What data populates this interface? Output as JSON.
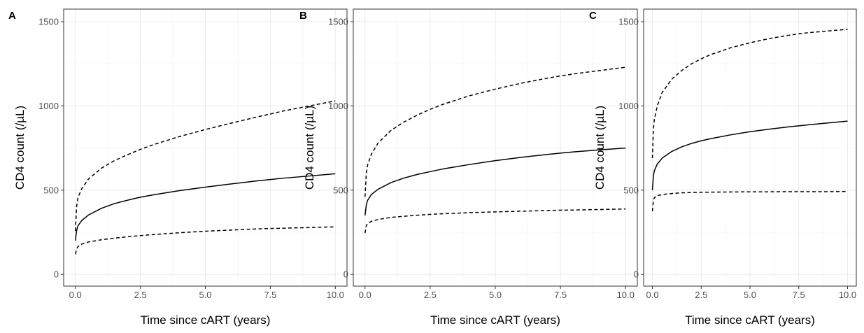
{
  "chart_data": [
    {
      "type": "line",
      "panel_label": "A",
      "xlabel": "Time since cART (years)",
      "ylabel": "CD4 count (/µL)",
      "xlim": [
        0,
        10
      ],
      "ylim": [
        0,
        1500
      ],
      "xticks": [
        "0.0",
        "2.5",
        "5.0",
        "7.5",
        "10.0"
      ],
      "yticks": [
        "0",
        "500",
        "1000",
        "1500"
      ],
      "grid": true,
      "series": [
        {
          "style": "solid",
          "x": [
            0,
            0.05,
            0.1,
            0.25,
            0.5,
            1,
            1.5,
            2,
            2.5,
            3,
            4,
            5,
            6,
            7,
            7.5,
            8,
            9,
            10
          ],
          "y": [
            200,
            262,
            288,
            320,
            352,
            392,
            420,
            440,
            458,
            472,
            497,
            518,
            537,
            555,
            563,
            571,
            584,
            597
          ]
        },
        {
          "style": "dashed",
          "x": [
            0,
            0.05,
            0.1,
            0.25,
            0.5,
            1,
            1.5,
            2,
            2.5,
            3,
            4,
            5,
            6,
            7,
            7.5,
            8,
            9,
            10
          ],
          "y": [
            258,
            405,
            455,
            510,
            565,
            630,
            675,
            710,
            742,
            770,
            818,
            860,
            898,
            935,
            952,
            970,
            1000,
            1030
          ]
        },
        {
          "style": "dashed",
          "x": [
            0,
            0.05,
            0.1,
            0.25,
            0.5,
            1,
            1.5,
            2,
            2.5,
            3,
            4,
            5,
            6,
            7,
            7.5,
            8,
            9,
            10
          ],
          "y": [
            120,
            150,
            165,
            180,
            192,
            205,
            215,
            223,
            230,
            236,
            247,
            256,
            263,
            270,
            272,
            274,
            278,
            282
          ]
        }
      ]
    },
    {
      "type": "line",
      "panel_label": "B",
      "xlabel": "Time since cART (years)",
      "ylabel": "CD4 count (/µL)",
      "xlim": [
        0,
        10
      ],
      "ylim": [
        0,
        1500
      ],
      "xticks": [
        "0.0",
        "2.5",
        "5.0",
        "7.5",
        "10.0"
      ],
      "yticks": [
        "0",
        "500",
        "1000",
        "1500"
      ],
      "grid": true,
      "series": [
        {
          "style": "solid",
          "x": [
            0,
            0.05,
            0.1,
            0.25,
            0.5,
            1,
            1.5,
            2,
            2.5,
            3,
            4,
            5,
            6,
            7,
            7.5,
            8,
            9,
            10
          ],
          "y": [
            350,
            412,
            440,
            475,
            505,
            545,
            572,
            593,
            610,
            626,
            652,
            675,
            695,
            712,
            720,
            727,
            739,
            750
          ]
        },
        {
          "style": "dashed",
          "x": [
            0,
            0.05,
            0.1,
            0.25,
            0.5,
            1,
            1.5,
            2,
            2.5,
            3,
            4,
            5,
            6,
            7,
            7.5,
            8,
            9,
            10
          ],
          "y": [
            460,
            600,
            650,
            715,
            780,
            855,
            905,
            945,
            980,
            1010,
            1060,
            1100,
            1135,
            1165,
            1178,
            1190,
            1210,
            1230
          ]
        },
        {
          "style": "dashed",
          "x": [
            0,
            0.05,
            0.1,
            0.25,
            0.5,
            1,
            1.5,
            2,
            2.5,
            3,
            4,
            5,
            6,
            7,
            7.5,
            8,
            9,
            10
          ],
          "y": [
            245,
            290,
            302,
            315,
            326,
            338,
            345,
            351,
            356,
            360,
            366,
            371,
            375,
            379,
            381,
            382,
            385,
            388
          ]
        }
      ]
    },
    {
      "type": "line",
      "panel_label": "C",
      "xlabel": "Time since cART (years)",
      "ylabel": "CD4 count (/µL)",
      "xlim": [
        0,
        10
      ],
      "ylim": [
        0,
        1500
      ],
      "xticks": [
        "0.0",
        "2.5",
        "5.0",
        "7.5",
        "10.0"
      ],
      "yticks": [
        "0",
        "500",
        "1000",
        "1500"
      ],
      "grid": true,
      "series": [
        {
          "style": "solid",
          "x": [
            0,
            0.05,
            0.1,
            0.25,
            0.5,
            1,
            1.5,
            2,
            2.5,
            3,
            4,
            5,
            6,
            7,
            7.5,
            8,
            9,
            10
          ],
          "y": [
            500,
            585,
            615,
            655,
            690,
            730,
            757,
            777,
            793,
            806,
            828,
            847,
            862,
            876,
            882,
            888,
            899,
            910
          ]
        },
        {
          "style": "dashed",
          "x": [
            0,
            0.05,
            0.1,
            0.25,
            0.5,
            1,
            1.5,
            2,
            2.5,
            3,
            4,
            5,
            6,
            7,
            7.5,
            8,
            9,
            10
          ],
          "y": [
            690,
            860,
            920,
            1000,
            1080,
            1160,
            1210,
            1250,
            1280,
            1305,
            1345,
            1375,
            1400,
            1420,
            1428,
            1435,
            1445,
            1455
          ]
        },
        {
          "style": "dashed",
          "x": [
            0,
            0.05,
            0.1,
            0.25,
            0.5,
            1,
            1.5,
            2,
            2.5,
            3,
            4,
            5,
            6,
            7,
            7.5,
            8,
            9,
            10
          ],
          "y": [
            375,
            440,
            455,
            467,
            474,
            480,
            484,
            486,
            487,
            488,
            489,
            490,
            490,
            491,
            491,
            491,
            491,
            492
          ]
        }
      ]
    }
  ]
}
